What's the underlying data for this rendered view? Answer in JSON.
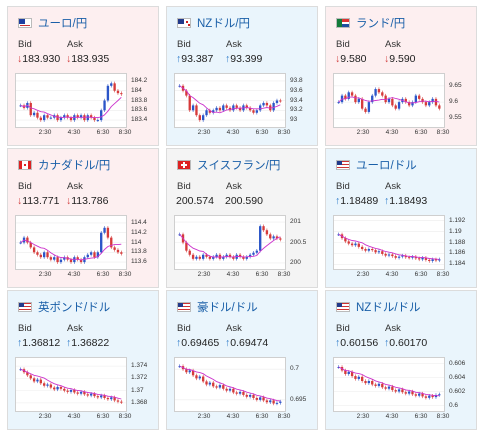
{
  "colors": {
    "down_bg": "#fdeff0",
    "up_bg": "#eaf5fc",
    "candle_up": "#2b55c8",
    "candle_down": "#d63a3a",
    "ma": "#cc33cc"
  },
  "bid_label": "Bid",
  "ask_label": "Ask",
  "x_ticks": [
    "2:30",
    "4:30",
    "6:30",
    "8:30"
  ],
  "cards": [
    {
      "id": "eurjpy",
      "title": "ユーロ/円",
      "flag": "eu-flag-icon",
      "state": "down",
      "bid": "183.930",
      "ask": "183.935",
      "bid_arrow": "↓",
      "ask_arrow": "↓",
      "y_ticks": [
        "184.2",
        "184",
        "183.8",
        "183.6",
        "183.4"
      ],
      "y_range": [
        183.3,
        184.3
      ],
      "closes": [
        183.7,
        183.65,
        183.75,
        183.5,
        183.55,
        183.45,
        183.4,
        183.5,
        183.45,
        183.45,
        183.5,
        183.4,
        183.45,
        183.5,
        183.45,
        183.4,
        183.5,
        183.45,
        183.5,
        183.4,
        183.5,
        183.45,
        183.4,
        183.4,
        183.6,
        183.8,
        184.1,
        184.15,
        184.0,
        183.95,
        183.93
      ]
    },
    {
      "id": "nzdjpy",
      "title": "NZドル/円",
      "flag": "nz-flag-icon",
      "state": "up",
      "bid": "93.387",
      "ask": "93.399",
      "bid_arrow": "↑",
      "ask_arrow": "↑",
      "y_ticks": [
        "93.8",
        "93.6",
        "93.4",
        "93.2",
        "93"
      ],
      "y_range": [
        92.9,
        93.9
      ],
      "closes": [
        93.7,
        93.6,
        93.5,
        93.2,
        93.3,
        93.1,
        93.0,
        93.1,
        93.2,
        93.15,
        93.2,
        93.25,
        93.2,
        93.3,
        93.25,
        93.2,
        93.3,
        93.25,
        93.2,
        93.3,
        93.25,
        93.2,
        93.15,
        93.2,
        93.3,
        93.35,
        93.3,
        93.2,
        93.35,
        93.4,
        93.39
      ]
    },
    {
      "id": "zarjpy",
      "title": "ランド/円",
      "flag": "za-flag-icon",
      "state": "down",
      "bid": "9.580",
      "ask": "9.590",
      "bid_arrow": "↓",
      "ask_arrow": "↓",
      "y_ticks": [
        "9.65",
        "9.6",
        "9.55"
      ],
      "y_range": [
        9.53,
        9.68
      ],
      "closes": [
        9.6,
        9.62,
        9.61,
        9.63,
        9.62,
        9.6,
        9.61,
        9.58,
        9.57,
        9.6,
        9.62,
        9.64,
        9.63,
        9.62,
        9.6,
        9.61,
        9.59,
        9.58,
        9.6,
        9.61,
        9.6,
        9.59,
        9.6,
        9.62,
        9.61,
        9.6,
        9.59,
        9.6,
        9.61,
        9.59,
        9.58
      ]
    },
    {
      "id": "cadjpy",
      "title": "カナダドル/円",
      "flag": "ca-flag-icon",
      "state": "down",
      "bid": "113.771",
      "ask": "113.786",
      "bid_arrow": "↓",
      "ask_arrow": "↓",
      "y_ticks": [
        "114.4",
        "114.2",
        "114",
        "113.8",
        "113.6"
      ],
      "y_range": [
        113.5,
        114.5
      ],
      "closes": [
        114.0,
        114.1,
        114.0,
        113.9,
        113.8,
        113.75,
        113.7,
        113.8,
        113.7,
        113.65,
        113.7,
        113.6,
        113.65,
        113.7,
        113.65,
        113.6,
        113.7,
        113.65,
        113.6,
        113.7,
        113.75,
        113.8,
        113.7,
        113.8,
        114.2,
        114.3,
        114.1,
        113.9,
        113.85,
        113.8,
        113.77
      ]
    },
    {
      "id": "chfjpy",
      "title": "スイスフラン/円",
      "flag": "ch-flag-icon",
      "state": "flat",
      "bid": "200.574",
      "ask": "200.590",
      "bid_arrow": "",
      "ask_arrow": "",
      "y_ticks": [
        "201",
        "200.5",
        "200"
      ],
      "y_range": [
        199.9,
        201.1
      ],
      "closes": [
        200.7,
        200.5,
        200.3,
        200.2,
        200.1,
        200.15,
        200.1,
        200.2,
        200.15,
        200.1,
        200.15,
        200.2,
        200.1,
        200.15,
        200.2,
        200.15,
        200.1,
        200.2,
        200.15,
        200.1,
        200.15,
        200.2,
        200.25,
        200.3,
        200.9,
        200.8,
        200.7,
        200.6,
        200.65,
        200.6,
        200.57
      ]
    },
    {
      "id": "eurusd",
      "title": "ユーロ/ドル",
      "flag": "eu-us-flag-icon",
      "state": "up",
      "bid": "1.18489",
      "ask": "1.18493",
      "bid_arrow": "↑",
      "ask_arrow": "↑",
      "y_ticks": [
        "1.192",
        "1.19",
        "1.188",
        "1.186",
        "1.184"
      ],
      "y_range": [
        1.1835,
        1.1925
      ],
      "closes": [
        1.1895,
        1.1888,
        1.1882,
        1.1878,
        1.1875,
        1.1878,
        1.1872,
        1.1868,
        1.1865,
        1.1868,
        1.1866,
        1.1862,
        1.1864,
        1.1859,
        1.1856,
        1.1858,
        1.1855,
        1.1852,
        1.1854,
        1.1856,
        1.1853,
        1.1852,
        1.1854,
        1.1851,
        1.1849,
        1.1852,
        1.1848,
        1.1846,
        1.1849,
        1.1847,
        1.1849
      ]
    },
    {
      "id": "gbpusd",
      "title": "英ポンド/ドル",
      "flag": "gb-us-flag-icon",
      "state": "up",
      "bid": "1.36812",
      "ask": "1.36822",
      "bid_arrow": "↑",
      "ask_arrow": "↑",
      "y_ticks": [
        "1.374",
        "1.372",
        "1.37",
        "1.368"
      ],
      "y_range": [
        1.367,
        1.375
      ],
      "closes": [
        1.3735,
        1.373,
        1.3725,
        1.372,
        1.3715,
        1.3718,
        1.3712,
        1.3708,
        1.371,
        1.3705,
        1.3702,
        1.3706,
        1.3703,
        1.37,
        1.3698,
        1.3701,
        1.3697,
        1.3695,
        1.3698,
        1.3694,
        1.3692,
        1.3695,
        1.3691,
        1.3689,
        1.3692,
        1.3688,
        1.3686,
        1.3689,
        1.3684,
        1.3682,
        1.3681
      ]
    },
    {
      "id": "audusd",
      "title": "豪ドル/ドル",
      "flag": "au-us-flag-icon",
      "state": "up",
      "bid": "0.69465",
      "ask": "0.69474",
      "bid_arrow": "↑",
      "ask_arrow": "↑",
      "y_ticks": [
        "0.7",
        "0.695"
      ],
      "y_range": [
        0.6935,
        0.7015
      ],
      "closes": [
        0.7005,
        0.7,
        0.6995,
        0.6998,
        0.699,
        0.6985,
        0.6988,
        0.698,
        0.6975,
        0.6978,
        0.6972,
        0.697,
        0.6974,
        0.6968,
        0.6965,
        0.6968,
        0.6962,
        0.696,
        0.6963,
        0.6958,
        0.6955,
        0.6958,
        0.6953,
        0.695,
        0.6954,
        0.6949,
        0.6946,
        0.6949,
        0.6944,
        0.6945,
        0.6947
      ]
    },
    {
      "id": "nzdusd",
      "title": "NZドル/ドル",
      "flag": "nz-us-flag-icon",
      "state": "up",
      "bid": "0.60156",
      "ask": "0.60170",
      "bid_arrow": "↑",
      "ask_arrow": "↑",
      "y_ticks": [
        "0.606",
        "0.604",
        "0.602",
        "0.6"
      ],
      "y_range": [
        0.5995,
        0.6065
      ],
      "closes": [
        0.6055,
        0.605,
        0.6045,
        0.6048,
        0.6042,
        0.6038,
        0.6041,
        0.6035,
        0.6032,
        0.6035,
        0.603,
        0.6028,
        0.6031,
        0.6026,
        0.6024,
        0.6027,
        0.6022,
        0.602,
        0.6023,
        0.6019,
        0.6017,
        0.602,
        0.6016,
        0.6014,
        0.6017,
        0.6013,
        0.6011,
        0.6014,
        0.6012,
        0.6015,
        0.6016
      ]
    }
  ]
}
